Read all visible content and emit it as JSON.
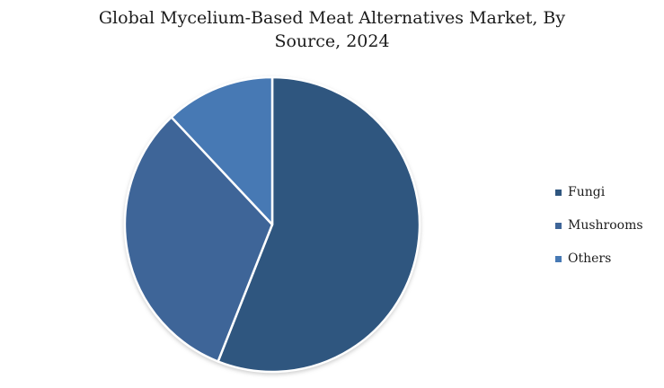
{
  "title": "Global Mycelium-Based Meat Alternatives Market, By Source, 2024",
  "chart_data": {
    "type": "pie",
    "title": "Global Mycelium-Based Meat Alternatives Market, By Source, 2024",
    "categories": [
      "Fungi",
      "Mushrooms",
      "Others"
    ],
    "values": [
      56,
      32,
      12
    ],
    "colors": [
      "#2F567F",
      "#3E6598",
      "#4779B4"
    ],
    "start_angle_deg": 0,
    "direction": "clockwise",
    "legend_position": "right",
    "data_labels_shown": false,
    "separator_color": "#ffffff",
    "background_color": "#ffffff"
  }
}
